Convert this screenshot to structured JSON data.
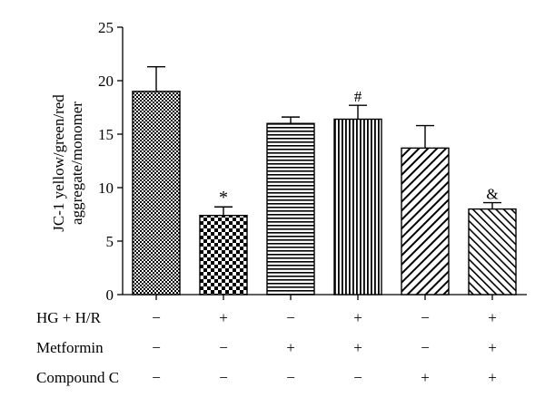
{
  "chart_data": {
    "type": "bar",
    "ylabel": [
      "JC-1 yellow/green/red",
      "aggregate/monomer"
    ],
    "ylim": [
      0,
      25
    ],
    "yticks": [
      0,
      5,
      10,
      15,
      20,
      25
    ],
    "values": [
      19.0,
      7.4,
      16.0,
      16.4,
      13.7,
      8.0
    ],
    "errors": [
      2.3,
      0.8,
      0.6,
      1.3,
      2.1,
      0.6
    ],
    "annotations": [
      "",
      "*",
      "",
      "#",
      "",
      "&"
    ],
    "patterns": [
      "checker-fine",
      "checker-coarse",
      "horizontal-lines",
      "vertical-lines",
      "diagonal-forward",
      "diagonal-back"
    ],
    "grid": false,
    "legend": "none",
    "condition_rows": [
      {
        "label": "HG + H/R",
        "signs": [
          "−",
          "+",
          "−",
          "+",
          "−",
          "+"
        ]
      },
      {
        "label": "Metformin",
        "signs": [
          "−",
          "−",
          "+",
          "+",
          "−",
          "+"
        ]
      },
      {
        "label": "Compound C",
        "signs": [
          "−",
          "−",
          "−",
          "−",
          "+",
          "+"
        ]
      }
    ]
  }
}
